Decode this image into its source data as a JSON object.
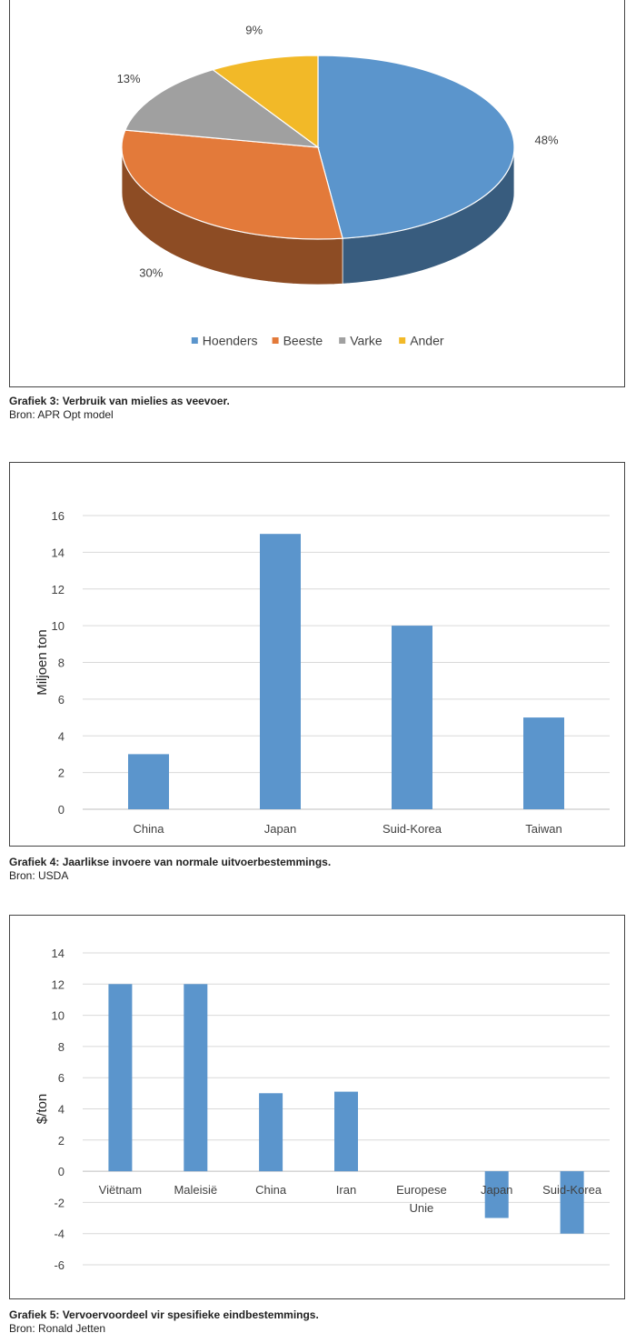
{
  "chart_data": [
    {
      "type": "pie",
      "categories": [
        "Hoenders",
        "Beeste",
        "Varke",
        "Ander"
      ],
      "values": [
        48,
        30,
        13,
        9
      ],
      "value_labels": [
        "48%",
        "30%",
        "13%",
        "9%"
      ],
      "colors": [
        "#5b95cc",
        "#e37a3a",
        "#a0a0a0",
        "#f2b928"
      ],
      "legend": "bottom",
      "three_d": true
    },
    {
      "type": "bar",
      "categories": [
        "China",
        "Japan",
        "Suid-Korea",
        "Taiwan"
      ],
      "values": [
        3,
        15,
        10,
        5
      ],
      "ylabel": "Miljoen ton",
      "ylim": [
        0,
        16
      ],
      "yticks": [
        "0",
        "2",
        "4",
        "6",
        "8",
        "10",
        "12",
        "14",
        "16"
      ],
      "color": "#5b95cc",
      "grid": true
    },
    {
      "type": "bar",
      "categories": [
        "Viëtnam",
        "Maleisië",
        "China",
        "Iran",
        "Europese Unie",
        "Japan",
        "Suid-Korea"
      ],
      "values": [
        12,
        12,
        5,
        5.1,
        0,
        -3,
        -4
      ],
      "ylabel": "$/ton",
      "ylim": [
        -6,
        14
      ],
      "yticks": [
        "-6",
        "-4",
        "-2",
        "0",
        "2",
        "4",
        "6",
        "8",
        "10",
        "12",
        "14"
      ],
      "color": "#5b95cc",
      "grid": true
    }
  ],
  "captions": [
    {
      "title": "Grafiek 3: Verbruik van mielies as veevoer.",
      "source": "Bron: APR Opt model"
    },
    {
      "title": "Grafiek 4: Jaarlikse invoere van normale uitvoerbestemmings.",
      "source": "Bron: USDA"
    },
    {
      "title": "Grafiek 5: Vervoervoordeel vir spesifieke eindbestemmings.",
      "source": "Bron: Ronald Jetten"
    }
  ]
}
